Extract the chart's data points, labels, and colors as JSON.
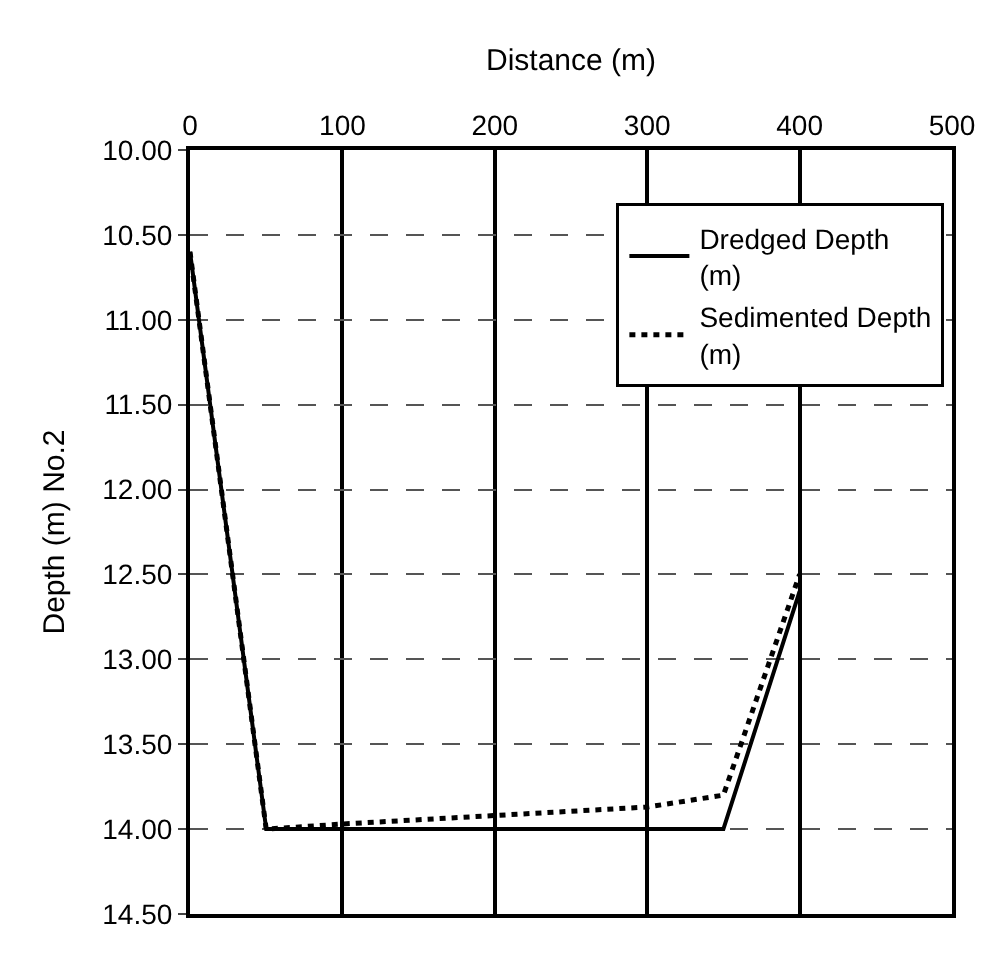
{
  "chart_data": {
    "type": "line",
    "xlabel": "Distance (m)",
    "ylabel": "Depth (m) No.2",
    "series": [
      {
        "name": "Dredged Depth\n(m)",
        "color": "#000000",
        "line_style": "solid",
        "x": [
          0,
          50,
          350,
          400
        ],
        "values": [
          10.6,
          14.0,
          14.0,
          12.6
        ]
      },
      {
        "name": "Sedimented Depth\n(m)",
        "color": "#000000",
        "line_style": "dotted",
        "x": [
          0,
          50,
          100,
          200,
          300,
          350,
          400
        ],
        "values": [
          10.6,
          14.0,
          13.97,
          13.92,
          13.87,
          13.8,
          12.5
        ]
      }
    ],
    "xlim": [
      0,
      500
    ],
    "xticks": [
      0,
      100,
      200,
      300,
      400,
      500
    ],
    "ylim": [
      14.5,
      10.0
    ],
    "yticks": [
      {
        "value": 10.0,
        "label": "10.00"
      },
      {
        "value": 10.5,
        "label": "10.50"
      },
      {
        "value": 11.0,
        "label": "11.00"
      },
      {
        "value": 11.5,
        "label": "11.50"
      },
      {
        "value": 12.0,
        "label": "12.00"
      },
      {
        "value": 12.5,
        "label": "12.50"
      },
      {
        "value": 13.0,
        "label": "13.00"
      },
      {
        "value": 13.5,
        "label": "13.50"
      },
      {
        "value": 14.0,
        "label": "14.00"
      },
      {
        "value": 14.5,
        "label": "14.50"
      }
    ],
    "grid": true,
    "legend": "top right",
    "marker": "none"
  }
}
